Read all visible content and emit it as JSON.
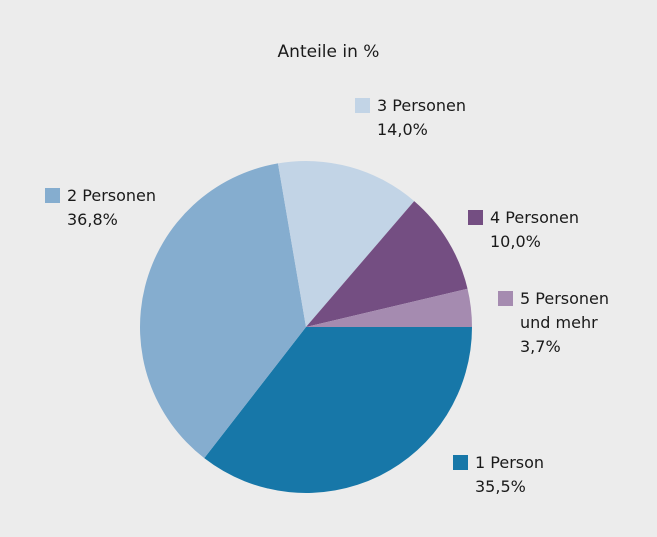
{
  "chart_data": {
    "type": "pie",
    "title": "Anteile in %",
    "categories": [
      "1 Person",
      "2 Personen",
      "3 Personen",
      "4 Personen",
      "5 Personen und mehr"
    ],
    "values": [
      35.5,
      36.8,
      14.0,
      10.0,
      3.7
    ],
    "value_labels": [
      "35,5%",
      "36,8%",
      "14,0%",
      "10,0%",
      "3,7%"
    ],
    "colors": [
      "#1777a8",
      "#85adcf",
      "#c2d4e6",
      "#744e82",
      "#a58bb0"
    ]
  }
}
